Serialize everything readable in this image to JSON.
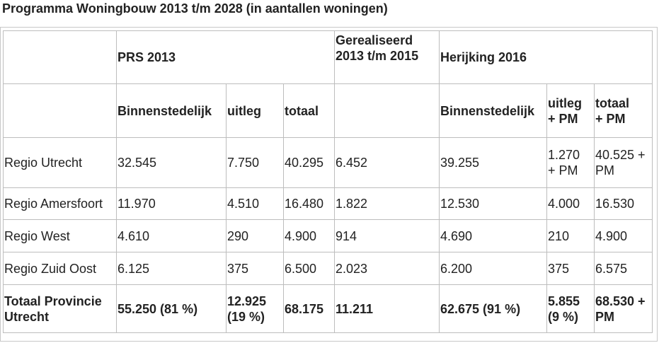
{
  "title": "Programma Woningbouw 2013 t/m 2028 (in aantallen woningen)",
  "table": {
    "group_headers": {
      "prs": "PRS 2013",
      "gerealiseerd_line1": "Gerealiseerd",
      "gerealiseerd_line2": "2013 t/m 2015",
      "herijking": "Herijking 2016"
    },
    "sub_headers": {
      "prs_binnen": "Binnenstedelijk",
      "prs_uitleg": "uitleg",
      "prs_totaal": "totaal",
      "her_binnen": "Binnenstedelijk",
      "her_uitleg_1": "uitleg",
      "her_uitleg_2": "+ PM",
      "her_totaal_1": "totaal",
      "her_totaal_2": "+ PM"
    },
    "rows": [
      {
        "regio": "Regio Utrecht",
        "prs_binnen": "32.545",
        "prs_uitleg": "7.750",
        "prs_totaal": "40.295",
        "gerealiseerd": "6.452",
        "her_binnen": "39.255",
        "her_uitleg_1": "1.270",
        "her_uitleg_2": "+ PM",
        "her_totaal_1": "40.525 +",
        "her_totaal_2": "PM"
      },
      {
        "regio": "Regio Amersfoort",
        "prs_binnen": "11.970",
        "prs_uitleg": "4.510",
        "prs_totaal": "16.480",
        "gerealiseerd": "1.822",
        "her_binnen": "12.530",
        "her_uitleg_1": "4.000",
        "her_uitleg_2": "",
        "her_totaal_1": "16.530",
        "her_totaal_2": ""
      },
      {
        "regio": "Regio West",
        "prs_binnen": "4.610",
        "prs_uitleg": "290",
        "prs_totaal": "4.900",
        "gerealiseerd": "914",
        "her_binnen": "4.690",
        "her_uitleg_1": "210",
        "her_uitleg_2": "",
        "her_totaal_1": "4.900",
        "her_totaal_2": ""
      },
      {
        "regio": "Regio Zuid Oost",
        "prs_binnen": "6.125",
        "prs_uitleg": "375",
        "prs_totaal": "6.500",
        "gerealiseerd": "2.023",
        "her_binnen": "6.200",
        "her_uitleg_1": "375",
        "her_uitleg_2": "",
        "her_totaal_1": "6.575",
        "her_totaal_2": ""
      }
    ],
    "total": {
      "regio_1": "Totaal Provincie",
      "regio_2": "Utrecht",
      "prs_binnen": "55.250 (81 %)",
      "prs_uitleg_1": "12.925",
      "prs_uitleg_2": "(19 %)",
      "prs_totaal": "68.175",
      "gerealiseerd": "11.211",
      "her_binnen": "62.675 (91 %)",
      "her_uitleg_1": "5.855",
      "her_uitleg_2": "(9 %)",
      "her_totaal_1": "68.530 +",
      "her_totaal_2": "PM"
    }
  }
}
